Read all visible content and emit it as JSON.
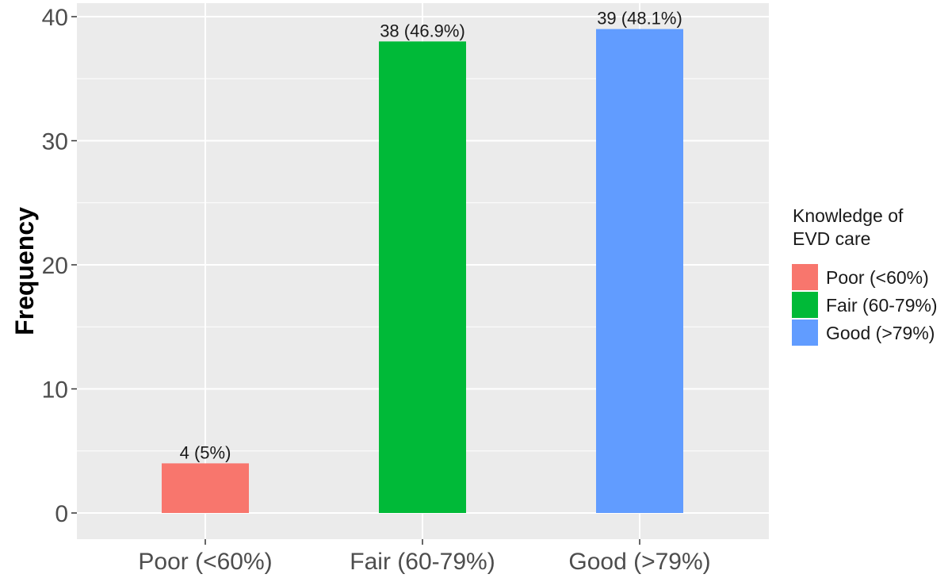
{
  "chart_data": {
    "type": "bar",
    "categories": [
      "Poor (<60%)",
      "Fair (60-79%)",
      "Good (>79%)"
    ],
    "values": [
      4,
      38,
      39
    ],
    "bar_labels": [
      "4 (5%)",
      "38 (46.9%)",
      "39 (48.1%)"
    ],
    "colors": [
      "#F8766D",
      "#00BA38",
      "#619CFF"
    ],
    "title": "",
    "xlabel": "",
    "ylabel": "Frequency",
    "ylim": [
      0,
      40
    ],
    "yticks": [
      0,
      10,
      20,
      30,
      40
    ],
    "grid": true,
    "panel_background": "#EBEBEB",
    "gridline_color": "#FFFFFF",
    "legend": {
      "title_lines": [
        "Knowledge of",
        "EVD care"
      ],
      "position": "right",
      "entries": [
        "Poor (<60%)",
        "Fair (60-79%)",
        "Good (>79%)"
      ]
    }
  }
}
